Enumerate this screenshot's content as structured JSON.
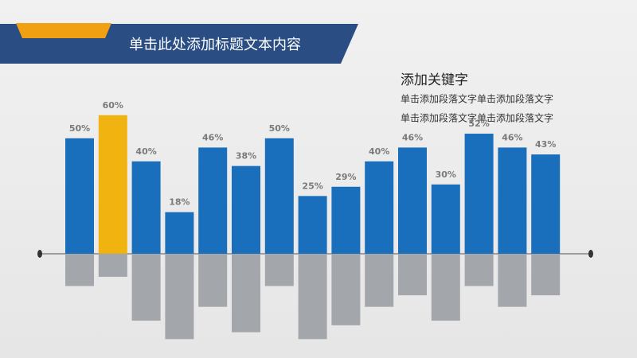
{
  "header": {
    "title": "单击此处添加标题文本内容"
  },
  "aside": {
    "heading": "添加关键字",
    "lines": [
      "单击添加段落文字单击添加段落文字",
      "单击添加段落文字单击添加段落文字"
    ]
  },
  "chart_data": {
    "type": "bar",
    "categories": [
      null,
      null,
      null,
      null,
      null,
      null,
      null,
      null,
      null,
      null,
      null,
      null,
      null,
      null,
      null
    ],
    "values": [
      50,
      60,
      40,
      18,
      46,
      38,
      50,
      25,
      29,
      40,
      46,
      30,
      52,
      46,
      43
    ],
    "value_labels": [
      "50%",
      "60%",
      "40%",
      "18%",
      "46%",
      "38%",
      "50%",
      "25%",
      "29%",
      "40%",
      "46%",
      "30%",
      "52%",
      "46%",
      "43%"
    ],
    "colors": [
      "#1a6fbd",
      "#f0b30f",
      "#1a6fbd",
      "#1a6fbd",
      "#1a6fbd",
      "#1a6fbd",
      "#1a6fbd",
      "#1a6fbd",
      "#1a6fbd",
      "#1a6fbd",
      "#1a6fbd",
      "#1a6fbd",
      "#1a6fbd",
      "#1a6fbd",
      "#1a6fbd"
    ],
    "lower_values": [
      -14,
      -10,
      -29,
      -37,
      -23,
      -34,
      -14,
      -37,
      -31,
      -23,
      -18,
      -29,
      -14,
      -23,
      -18
    ],
    "lower_color": "#a3a6aa",
    "ylim": [
      -40,
      62
    ]
  }
}
